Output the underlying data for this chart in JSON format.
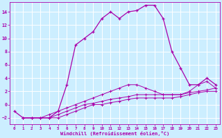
{
  "xlabel": "Windchill (Refroidissement éolien,°C)",
  "bg_color": "#cceeff",
  "grid_color": "#ffffff",
  "line_color": "#aa00aa",
  "xlim": [
    -0.5,
    23.5
  ],
  "ylim": [
    -3.0,
    15.5
  ],
  "yticks": [
    -2,
    0,
    2,
    4,
    6,
    8,
    10,
    12,
    14
  ],
  "xticks": [
    0,
    1,
    2,
    3,
    4,
    5,
    6,
    7,
    8,
    9,
    10,
    11,
    12,
    13,
    14,
    15,
    16,
    17,
    18,
    19,
    20,
    21,
    22,
    23
  ],
  "line1_x": [
    0,
    1,
    2,
    3,
    4,
    5,
    6,
    7,
    8,
    9,
    10,
    11,
    12,
    13,
    14,
    15,
    16,
    17,
    18,
    19,
    20,
    21,
    22,
    23
  ],
  "line1_y": [
    -1,
    -2,
    -2,
    -2,
    -2,
    -1,
    3,
    9,
    10,
    11,
    13,
    14,
    13,
    14,
    14.2,
    15,
    15,
    13,
    8,
    5.5,
    3,
    3,
    4,
    3
  ],
  "line2_x": [
    1,
    2,
    3,
    4,
    5,
    6,
    7,
    8,
    9,
    10,
    11,
    12,
    13,
    14,
    15,
    16,
    17,
    18,
    19,
    20,
    21,
    22,
    23
  ],
  "line2_y": [
    -2,
    -2,
    -2,
    -1.5,
    -1,
    -0.5,
    0,
    0.5,
    1,
    1.5,
    2,
    2.5,
    3,
    3,
    2.5,
    2,
    1.5,
    1.5,
    1.5,
    2,
    3,
    3.5,
    2.5
  ],
  "line3_x": [
    1,
    2,
    3,
    4,
    5,
    6,
    7,
    8,
    9,
    10,
    11,
    12,
    13,
    14,
    15,
    16,
    17,
    18,
    19,
    20,
    21,
    22,
    23
  ],
  "line3_y": [
    -2,
    -2,
    -2,
    -2,
    -1.5,
    -1,
    -0.5,
    0,
    0.2,
    0.5,
    0.8,
    1,
    1.2,
    1.5,
    1.5,
    1.5,
    1.5,
    1.5,
    1.5,
    1.8,
    2,
    2.2,
    2.5
  ],
  "line4_x": [
    1,
    2,
    3,
    4,
    5,
    6,
    7,
    8,
    9,
    10,
    11,
    12,
    13,
    14,
    15,
    16,
    17,
    18,
    19,
    20,
    21,
    22,
    23
  ],
  "line4_y": [
    -2,
    -2,
    -2,
    -2,
    -2,
    -1.5,
    -1,
    -0.5,
    0,
    0,
    0.3,
    0.5,
    0.8,
    1,
    1,
    1,
    1,
    1,
    1.2,
    1.5,
    1.8,
    2,
    2
  ]
}
